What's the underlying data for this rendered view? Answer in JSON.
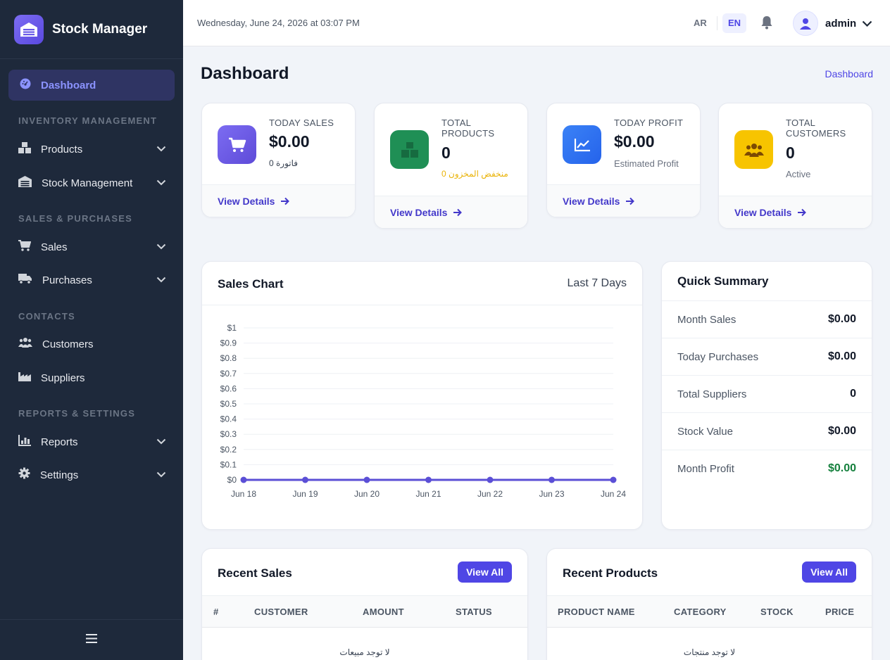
{
  "app": {
    "name": "Stock Manager"
  },
  "sidebar": {
    "active": {
      "label": "Dashboard"
    },
    "sections": {
      "inventory": "INVENTORY MANAGEMENT",
      "sales": "SALES & PURCHASES",
      "contacts": "CONTACTS",
      "reports": "REPORTS & SETTINGS"
    },
    "items": {
      "products": "Products",
      "stock": "Stock Management",
      "sales": "Sales",
      "purchases": "Purchases",
      "customers": "Customers",
      "suppliers": "Suppliers",
      "reports": "Reports",
      "settings": "Settings"
    }
  },
  "topbar": {
    "datetime": "Wednesday, June 24, 2026 at 03:07 PM",
    "lang_ar": "AR",
    "lang_en": "EN",
    "username": "admin"
  },
  "page": {
    "title": "Dashboard",
    "breadcrumb": "Dashboard"
  },
  "stats": {
    "today_sales": {
      "label": "TODAY SALES",
      "value": "$0.00",
      "sub": "0 فاتورة",
      "link": "View Details",
      "color": "#6d5ae6"
    },
    "total_products": {
      "label1": "TOTAL",
      "label2": "PRODUCTS",
      "value": "0",
      "sub": "0 منخفض المخزون",
      "link": "View Details",
      "color": "#1f8f55"
    },
    "today_profit": {
      "label": "TODAY PROFIT",
      "value": "$0.00",
      "sub": "Estimated Profit",
      "link": "View Details",
      "color": "#3b7cf5"
    },
    "total_customers": {
      "label1": "TOTAL",
      "label2": "CUSTOMERS",
      "value": "0",
      "sub": "Active",
      "link": "View Details",
      "color": "#f7c400"
    }
  },
  "sales_chart": {
    "title": "Sales Chart",
    "range": "Last 7 Days"
  },
  "chart_data": {
    "type": "line",
    "title": "Sales Chart",
    "categories": [
      "Jun 18",
      "Jun 19",
      "Jun 20",
      "Jun 21",
      "Jun 22",
      "Jun 23",
      "Jun 24"
    ],
    "values": [
      0,
      0,
      0,
      0,
      0,
      0,
      0
    ],
    "yticks": [
      "$0",
      "$0.1",
      "$0.2",
      "$0.3",
      "$0.4",
      "$0.5",
      "$0.6",
      "$0.7",
      "$0.8",
      "$0.9",
      "$1"
    ],
    "ylim": [
      0,
      1
    ],
    "grid": true,
    "color": "#5b4fd6"
  },
  "summary": {
    "title": "Quick Summary",
    "rows": [
      {
        "label": "Month Sales",
        "value": "$0.00"
      },
      {
        "label": "Today Purchases",
        "value": "$0.00"
      },
      {
        "label": "Total Suppliers",
        "value": "0"
      },
      {
        "label": "Stock Value",
        "value": "$0.00"
      },
      {
        "label": "Month Profit",
        "value": "$0.00"
      }
    ],
    "profit_color": "#15803d"
  },
  "recent_sales": {
    "title": "Recent Sales",
    "button": "View All",
    "columns": [
      "#",
      "CUSTOMER",
      "AMOUNT",
      "STATUS"
    ],
    "empty": "لا توجد مبيعات"
  },
  "recent_products": {
    "title": "Recent Products",
    "button": "View All",
    "columns": [
      "PRODUCT NAME",
      "CATEGORY",
      "STOCK",
      "PRICE"
    ],
    "empty": "لا توجد منتجات"
  }
}
